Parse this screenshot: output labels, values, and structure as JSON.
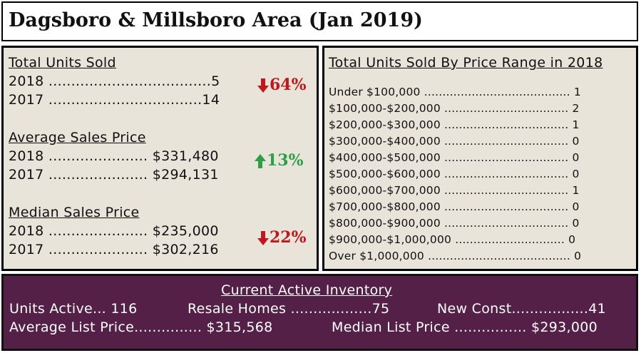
{
  "title": "Dagsboro & Millsboro Area (Jan 2019)",
  "total_units": {
    "heading": "Total Units Sold",
    "row_2018": "2018 ....................................5",
    "row_2017": "2017 ..................................14",
    "change": "64%",
    "direction": "down"
  },
  "avg_price": {
    "heading": "Average Sales Price",
    "row_2018": "2018 ...................... $331,480",
    "row_2017": "2017 ...................... $294,131",
    "change": "13%",
    "direction": "up"
  },
  "median_price": {
    "heading": "Median Sales Price",
    "row_2018": "2018 ...................... $235,000",
    "row_2017": "2017 ...................... $302,216",
    "change": "22%",
    "direction": "down"
  },
  "price_range": {
    "heading": "Total Units Sold By Price Range in 2018",
    "rows": [
      "Under $100,000 ........................................ 1",
      "$100,000-$200,000 .................................. 2",
      "$200,000-$300,000 .................................. 1",
      "$300,000-$400,000 .................................. 0",
      "$400,000-$500,000 .................................. 0",
      "$500,000-$600,000 .................................. 0",
      "$600,000-$700,000 .................................. 1",
      "$700,000-$800,000 .................................. 0",
      "$800,000-$900,000 .................................. 0",
      "$900,000-$1,000,000 .............................. 0",
      "Over $1,000,000 ....................................... 0"
    ]
  },
  "inventory": {
    "heading": "Current Active Inventory",
    "units_active": "Units Active... 116",
    "resale": "Resale Homes ..................75",
    "new_const": "New Const.................41",
    "avg_list": "Average List Price............... $315,568",
    "median_list": "Median List Price ................ $293,000"
  },
  "colors": {
    "panel_bg": "#e9e4da",
    "inventory_bg": "#552047",
    "down": "#c1161b",
    "up": "#2e9e48"
  }
}
